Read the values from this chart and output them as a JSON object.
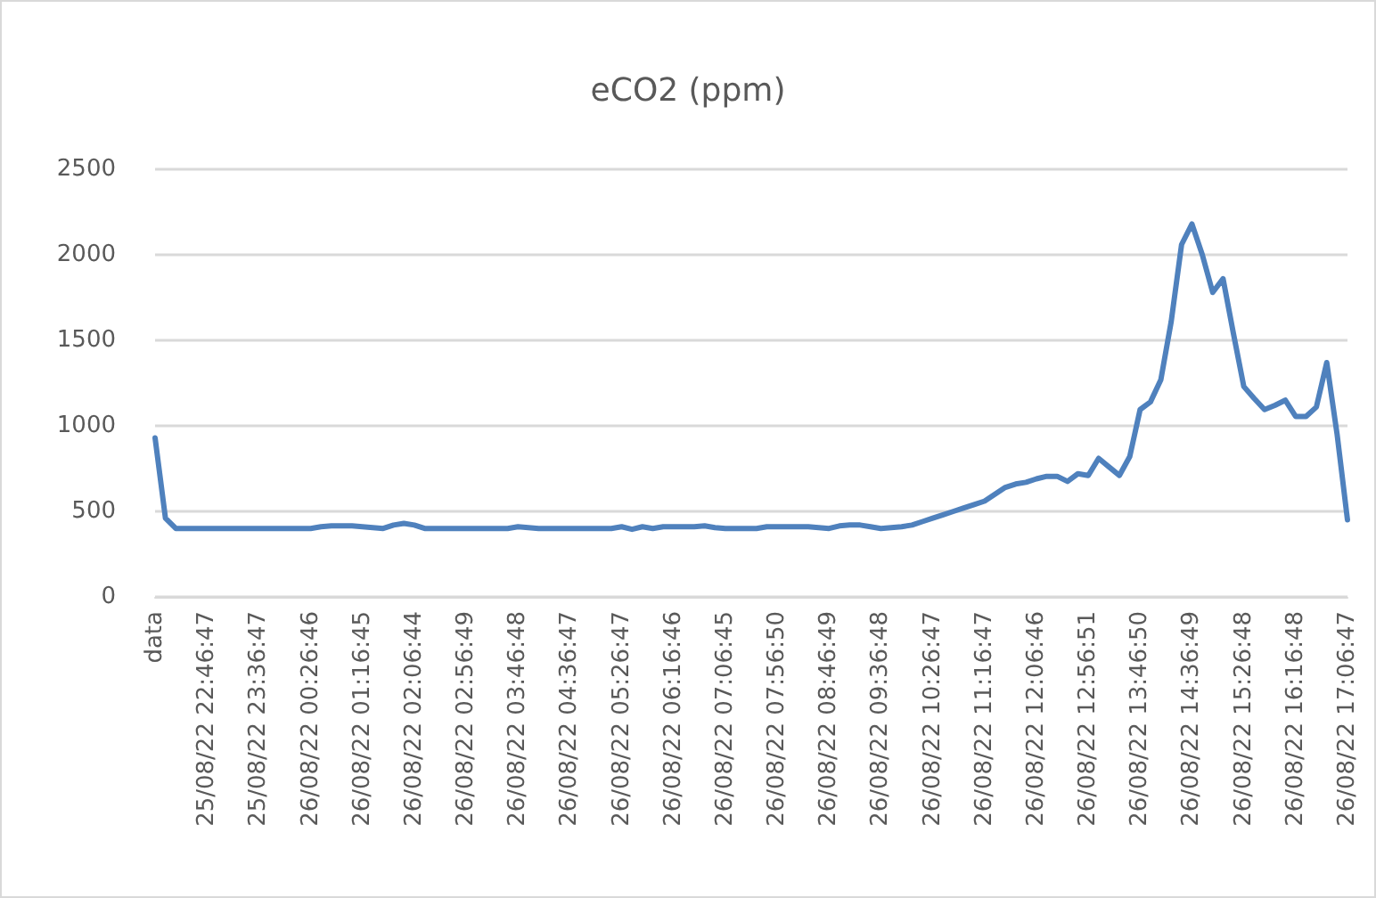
{
  "chart_data": {
    "type": "line",
    "title": "eCO2 (ppm)",
    "categories": [
      "data",
      null,
      null,
      null,
      null,
      "25/08/22 22:46:47",
      null,
      null,
      null,
      null,
      "25/08/22 23:36:47",
      null,
      null,
      null,
      null,
      "26/08/22 00:26:46",
      null,
      null,
      null,
      null,
      "26/08/22 01:16:45",
      null,
      null,
      null,
      null,
      "26/08/22 02:06:44",
      null,
      null,
      null,
      null,
      "26/08/22 02:56:49",
      null,
      null,
      null,
      null,
      "26/08/22 03:46:48",
      null,
      null,
      null,
      null,
      "26/08/22 04:36:47",
      null,
      null,
      null,
      null,
      "26/08/22 05:26:47",
      null,
      null,
      null,
      null,
      "26/08/22 06:16:46",
      null,
      null,
      null,
      null,
      "26/08/22 07:06:45",
      null,
      null,
      null,
      null,
      "26/08/22 07:56:50",
      null,
      null,
      null,
      null,
      "26/08/22 08:46:49",
      null,
      null,
      null,
      null,
      "26/08/22 09:36:48",
      null,
      null,
      null,
      null,
      "26/08/22 10:26:47",
      null,
      null,
      null,
      null,
      "26/08/22 11:16:47",
      null,
      null,
      null,
      null,
      "26/08/22 12:06:46",
      null,
      null,
      null,
      null,
      "26/08/22 12:56:51",
      null,
      null,
      null,
      null,
      "26/08/22 13:46:50",
      null,
      null,
      null,
      null,
      "26/08/22 14:36:49",
      null,
      null,
      null,
      null,
      "26/08/22 15:26:48",
      null,
      null,
      null,
      null,
      "26/08/22 16:16:48",
      null,
      null,
      null,
      null,
      "26/08/22 17:06:47"
    ],
    "series": [
      {
        "color": "#4f81bd",
        "values": [
          930,
          460,
          400,
          400,
          400,
          400,
          400,
          400,
          400,
          400,
          400,
          400,
          400,
          400,
          400,
          400,
          410,
          415,
          415,
          415,
          410,
          405,
          400,
          420,
          430,
          420,
          400,
          400,
          400,
          400,
          400,
          400,
          400,
          400,
          400,
          410,
          405,
          400,
          400,
          400,
          400,
          400,
          400,
          400,
          400,
          410,
          395,
          410,
          400,
          410,
          410,
          410,
          410,
          415,
          405,
          400,
          400,
          400,
          400,
          410,
          410,
          410,
          410,
          410,
          405,
          400,
          415,
          420,
          420,
          410,
          400,
          405,
          410,
          420,
          440,
          460,
          480,
          500,
          520,
          540,
          560,
          600,
          640,
          660,
          670,
          690,
          705,
          705,
          675,
          720,
          710,
          810,
          760,
          710,
          820,
          1095,
          1140,
          1270,
          1610,
          2060,
          2180,
          2000,
          1780,
          1860,
          1540,
          1230,
          1160,
          1095,
          1120,
          1150,
          1055,
          1055,
          1110,
          1370,
          950,
          450
        ]
      }
    ],
    "ylim": [
      0,
      2500
    ],
    "yticks": [
      0,
      500,
      1000,
      1500,
      2000,
      2500
    ],
    "grid": "y",
    "marker": "none",
    "line_style": "solid"
  }
}
